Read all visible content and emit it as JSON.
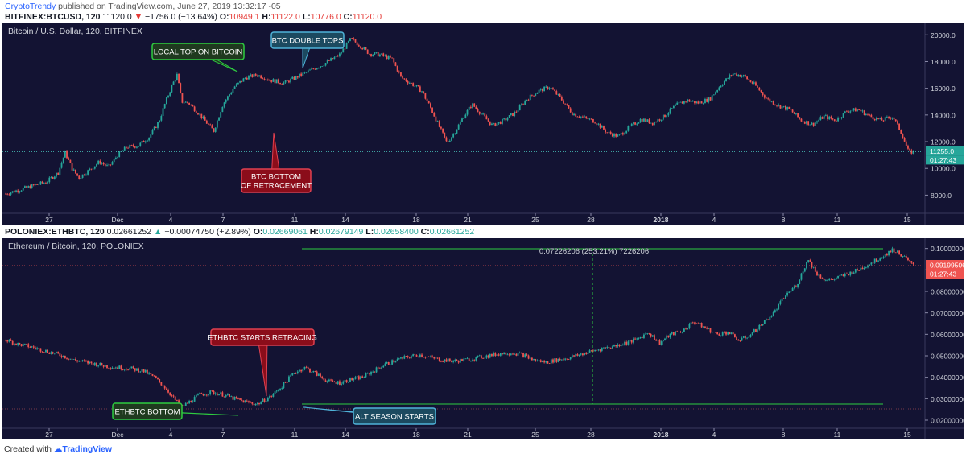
{
  "header": {
    "brand": "CryptoTrendy",
    "published": " published on TradingView.com, June 27, 2019 13:32:17 -05"
  },
  "btc_header": {
    "symbol": "BITFINEX:BTCUSD, 120",
    "last": "11120.0",
    "change": "−1756.0 (−13.64%)",
    "o_label": "O:",
    "o": "10949.1",
    "h_label": "H:",
    "h": "11122.0",
    "l_label": "L:",
    "l": "10776.0",
    "c_label": "C:",
    "c": "11120.0"
  },
  "eth_header": {
    "symbol": "POLONIEX:ETHBTC, 120",
    "last": "0.02661252",
    "change": "+0.00074750 (+2.89%)",
    "o_label": "O:",
    "o": "0.02669061",
    "h_label": "H:",
    "h": "0.02679149",
    "l_label": "L:",
    "l": "0.02658400",
    "c_label": "C:",
    "c": "0.02661252"
  },
  "footer": {
    "created": "Created with",
    "tv": "TradingView"
  },
  "colors": {
    "bg": "#131333",
    "up": "#26a69a",
    "down": "#ef5350",
    "callout_green": "#2ecc40",
    "callout_red": "#8b0d1a",
    "callout_blue": "#4fb3d9"
  },
  "chart_data": [
    {
      "type": "candlestick",
      "title": "Bitcoin / U.S. Dollar, 120, BITFINEX",
      "x_ticks": [
        "27",
        "Dec",
        "4",
        "7",
        "11",
        "14",
        "18",
        "21",
        "25",
        "28",
        "2018",
        "4",
        "8",
        "11",
        "15"
      ],
      "y_ticks": [
        "20000.0",
        "18000.0",
        "16000.0",
        "14000.0",
        "12000.0",
        "10000.0",
        "8000.0"
      ],
      "ylim": [
        7000,
        20500
      ],
      "last_price": "11255.0",
      "last_price_value": 11255,
      "countdown": "01:27:43",
      "series": [
        {
          "x": 0,
          "y": 8100
        },
        {
          "x": 0.6,
          "y": 8400
        },
        {
          "x": 1.2,
          "y": 8700
        },
        {
          "x": 1.8,
          "y": 9000
        },
        {
          "x": 2.3,
          "y": 9700
        },
        {
          "x": 2.6,
          "y": 11200
        },
        {
          "x": 2.9,
          "y": 10000
        },
        {
          "x": 3.2,
          "y": 9300
        },
        {
          "x": 3.6,
          "y": 9800
        },
        {
          "x": 4.1,
          "y": 10500
        },
        {
          "x": 4.5,
          "y": 10100
        },
        {
          "x": 4.9,
          "y": 11000
        },
        {
          "x": 5.3,
          "y": 11600
        },
        {
          "x": 5.8,
          "y": 11700
        },
        {
          "x": 6.3,
          "y": 12400
        },
        {
          "x": 6.7,
          "y": 13500
        },
        {
          "x": 7.0,
          "y": 15000
        },
        {
          "x": 7.3,
          "y": 16300
        },
        {
          "x": 7.5,
          "y": 17000
        },
        {
          "x": 7.7,
          "y": 15000
        },
        {
          "x": 8.0,
          "y": 14900
        },
        {
          "x": 8.4,
          "y": 14200
        },
        {
          "x": 8.8,
          "y": 13400
        },
        {
          "x": 9.1,
          "y": 12800
        },
        {
          "x": 9.5,
          "y": 14800
        },
        {
          "x": 10.0,
          "y": 16100
        },
        {
          "x": 10.5,
          "y": 16800
        },
        {
          "x": 11.0,
          "y": 17000
        },
        {
          "x": 11.6,
          "y": 16600
        },
        {
          "x": 12.2,
          "y": 16400
        },
        {
          "x": 12.8,
          "y": 16900
        },
        {
          "x": 13.4,
          "y": 17400
        },
        {
          "x": 14.0,
          "y": 17900
        },
        {
          "x": 14.6,
          "y": 18500
        },
        {
          "x": 15.1,
          "y": 19700
        },
        {
          "x": 15.5,
          "y": 19200
        },
        {
          "x": 15.9,
          "y": 18600
        },
        {
          "x": 16.4,
          "y": 18500
        },
        {
          "x": 16.9,
          "y": 18200
        },
        {
          "x": 17.3,
          "y": 16800
        },
        {
          "x": 17.8,
          "y": 16300
        },
        {
          "x": 18.2,
          "y": 15800
        },
        {
          "x": 18.6,
          "y": 14500
        },
        {
          "x": 19.0,
          "y": 13000
        },
        {
          "x": 19.3,
          "y": 11900
        },
        {
          "x": 19.6,
          "y": 12600
        },
        {
          "x": 20.0,
          "y": 13800
        },
        {
          "x": 20.4,
          "y": 14800
        },
        {
          "x": 20.8,
          "y": 14100
        },
        {
          "x": 21.3,
          "y": 13200
        },
        {
          "x": 21.8,
          "y": 13600
        },
        {
          "x": 22.3,
          "y": 14200
        },
        {
          "x": 22.8,
          "y": 15200
        },
        {
          "x": 23.3,
          "y": 15800
        },
        {
          "x": 23.8,
          "y": 16100
        },
        {
          "x": 24.3,
          "y": 15200
        },
        {
          "x": 24.8,
          "y": 14100
        },
        {
          "x": 25.3,
          "y": 13800
        },
        {
          "x": 25.8,
          "y": 13500
        },
        {
          "x": 26.3,
          "y": 12700
        },
        {
          "x": 26.8,
          "y": 12400
        },
        {
          "x": 27.3,
          "y": 13100
        },
        {
          "x": 27.8,
          "y": 13700
        },
        {
          "x": 28.3,
          "y": 13400
        },
        {
          "x": 28.8,
          "y": 13900
        },
        {
          "x": 29.3,
          "y": 14700
        },
        {
          "x": 29.8,
          "y": 15100
        },
        {
          "x": 30.3,
          "y": 14900
        },
        {
          "x": 30.8,
          "y": 15200
        },
        {
          "x": 31.3,
          "y": 16300
        },
        {
          "x": 31.8,
          "y": 17100
        },
        {
          "x": 32.3,
          "y": 16900
        },
        {
          "x": 32.8,
          "y": 16200
        },
        {
          "x": 33.3,
          "y": 15200
        },
        {
          "x": 33.8,
          "y": 14700
        },
        {
          "x": 34.3,
          "y": 14400
        },
        {
          "x": 34.8,
          "y": 13600
        },
        {
          "x": 35.3,
          "y": 13300
        },
        {
          "x": 35.8,
          "y": 13900
        },
        {
          "x": 36.3,
          "y": 13600
        },
        {
          "x": 36.8,
          "y": 14300
        },
        {
          "x": 37.3,
          "y": 14400
        },
        {
          "x": 37.8,
          "y": 13900
        },
        {
          "x": 38.3,
          "y": 13600
        },
        {
          "x": 38.8,
          "y": 13900
        },
        {
          "x": 39.2,
          "y": 12600
        },
        {
          "x": 39.5,
          "y": 11200
        },
        {
          "x": 39.7,
          "y": 11250
        }
      ],
      "annotations": [
        {
          "label": "LOCAL TOP ON BITCOIN",
          "style": "green"
        },
        {
          "label": "BTC DOUBLE TOPS",
          "style": "blue"
        },
        {
          "label": "BTC BOTTOM",
          "label2": "OF RETRACEMENT",
          "style": "red"
        }
      ]
    },
    {
      "type": "candlestick",
      "title": "Ethereum / Bitcoin, 120, POLONIEX",
      "x_ticks": [
        "27",
        "Dec",
        "4",
        "7",
        "11",
        "14",
        "18",
        "21",
        "25",
        "28",
        "2018",
        "4",
        "8",
        "11",
        "15"
      ],
      "y_ticks": [
        "0.10000000",
        "0.09000000",
        "0.08000000",
        "0.07000000",
        "0.06000000",
        "0.05000000",
        "0.04000000",
        "0.03000000",
        "0.02000000"
      ],
      "ylim": [
        0.0185,
        0.1025
      ],
      "last_price": "0.09199506",
      "last_price_value": 0.092,
      "countdown": "01:27:43",
      "measure_label": "0.07226206 (253.21%) 7226206",
      "series": [
        {
          "x": 0,
          "y": 0.0575
        },
        {
          "x": 0.5,
          "y": 0.0555
        },
        {
          "x": 1.0,
          "y": 0.0545
        },
        {
          "x": 1.5,
          "y": 0.053
        },
        {
          "x": 2.0,
          "y": 0.0515
        },
        {
          "x": 2.5,
          "y": 0.05
        },
        {
          "x": 3.0,
          "y": 0.048
        },
        {
          "x": 3.5,
          "y": 0.047
        },
        {
          "x": 4.0,
          "y": 0.046
        },
        {
          "x": 4.5,
          "y": 0.045
        },
        {
          "x": 5.0,
          "y": 0.0445
        },
        {
          "x": 5.5,
          "y": 0.044
        },
        {
          "x": 6.0,
          "y": 0.043
        },
        {
          "x": 6.5,
          "y": 0.04
        },
        {
          "x": 7.0,
          "y": 0.035
        },
        {
          "x": 7.4,
          "y": 0.0295
        },
        {
          "x": 7.7,
          "y": 0.026
        },
        {
          "x": 8.1,
          "y": 0.029
        },
        {
          "x": 8.5,
          "y": 0.032
        },
        {
          "x": 9.0,
          "y": 0.033
        },
        {
          "x": 9.5,
          "y": 0.032
        },
        {
          "x": 10.0,
          "y": 0.03
        },
        {
          "x": 10.5,
          "y": 0.0285
        },
        {
          "x": 11.0,
          "y": 0.0275
        },
        {
          "x": 11.6,
          "y": 0.031
        },
        {
          "x": 12.1,
          "y": 0.036
        },
        {
          "x": 12.6,
          "y": 0.042
        },
        {
          "x": 13.1,
          "y": 0.0445
        },
        {
          "x": 13.6,
          "y": 0.0415
        },
        {
          "x": 14.1,
          "y": 0.038
        },
        {
          "x": 14.6,
          "y": 0.0375
        },
        {
          "x": 15.1,
          "y": 0.039
        },
        {
          "x": 15.6,
          "y": 0.04
        },
        {
          "x": 16.1,
          "y": 0.043
        },
        {
          "x": 16.6,
          "y": 0.046
        },
        {
          "x": 17.1,
          "y": 0.048
        },
        {
          "x": 17.6,
          "y": 0.0495
        },
        {
          "x": 18.1,
          "y": 0.0505
        },
        {
          "x": 18.6,
          "y": 0.049
        },
        {
          "x": 19.1,
          "y": 0.048
        },
        {
          "x": 19.6,
          "y": 0.0475
        },
        {
          "x": 20.1,
          "y": 0.048
        },
        {
          "x": 20.6,
          "y": 0.049
        },
        {
          "x": 21.1,
          "y": 0.05
        },
        {
          "x": 21.6,
          "y": 0.051
        },
        {
          "x": 22.1,
          "y": 0.0515
        },
        {
          "x": 22.6,
          "y": 0.0505
        },
        {
          "x": 23.1,
          "y": 0.048
        },
        {
          "x": 23.6,
          "y": 0.047
        },
        {
          "x": 24.1,
          "y": 0.048
        },
        {
          "x": 24.6,
          "y": 0.049
        },
        {
          "x": 25.1,
          "y": 0.0505
        },
        {
          "x": 25.6,
          "y": 0.052
        },
        {
          "x": 26.1,
          "y": 0.0535
        },
        {
          "x": 26.6,
          "y": 0.0545
        },
        {
          "x": 27.1,
          "y": 0.056
        },
        {
          "x": 27.6,
          "y": 0.0575
        },
        {
          "x": 28.1,
          "y": 0.061
        },
        {
          "x": 28.6,
          "y": 0.056
        },
        {
          "x": 29.1,
          "y": 0.06
        },
        {
          "x": 29.6,
          "y": 0.0615
        },
        {
          "x": 30.1,
          "y": 0.066
        },
        {
          "x": 30.6,
          "y": 0.063
        },
        {
          "x": 31.1,
          "y": 0.06
        },
        {
          "x": 31.6,
          "y": 0.061
        },
        {
          "x": 32.1,
          "y": 0.057
        },
        {
          "x": 32.6,
          "y": 0.06
        },
        {
          "x": 33.1,
          "y": 0.065
        },
        {
          "x": 33.6,
          "y": 0.07
        },
        {
          "x": 34.1,
          "y": 0.078
        },
        {
          "x": 34.6,
          "y": 0.083
        },
        {
          "x": 35.1,
          "y": 0.095
        },
        {
          "x": 35.5,
          "y": 0.088
        },
        {
          "x": 35.9,
          "y": 0.085
        },
        {
          "x": 36.3,
          "y": 0.086
        },
        {
          "x": 36.8,
          "y": 0.088
        },
        {
          "x": 37.3,
          "y": 0.09
        },
        {
          "x": 37.8,
          "y": 0.093
        },
        {
          "x": 38.3,
          "y": 0.096
        },
        {
          "x": 38.8,
          "y": 0.0995
        },
        {
          "x": 39.2,
          "y": 0.097
        },
        {
          "x": 39.7,
          "y": 0.092
        }
      ],
      "annotations": [
        {
          "label": "ETHBTC STARTS RETRACING",
          "style": "red"
        },
        {
          "label": "ETHBTC BOTTOM",
          "style": "green"
        },
        {
          "label": "ALT SEASON STARTS",
          "style": "blue"
        }
      ]
    }
  ]
}
